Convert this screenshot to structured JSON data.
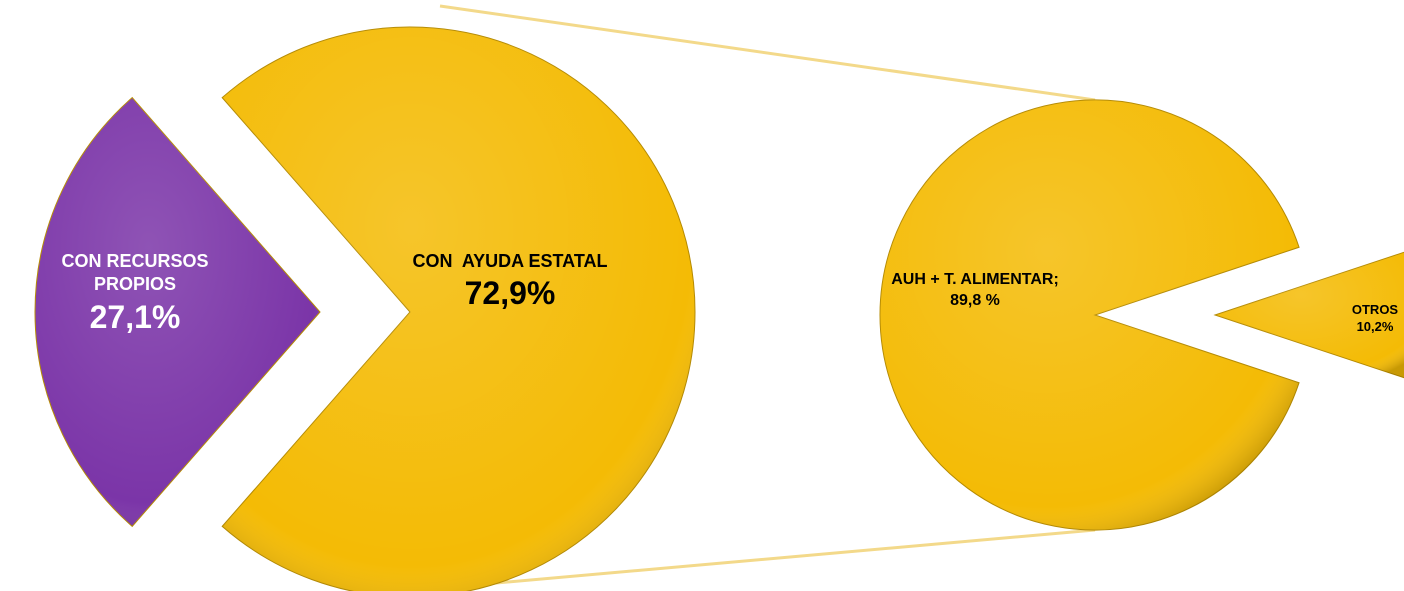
{
  "chart_data": [
    {
      "type": "pie",
      "categories": [
        "CON RECURSOS PROPIOS",
        "CON  AYUDA ESTATAL"
      ],
      "values": [
        27.1,
        72.9
      ],
      "value_labels": [
        "27,1%",
        "72,9%"
      ],
      "colors": [
        "#7b35a8",
        "#f4bb05"
      ]
    },
    {
      "type": "pie",
      "categories": [
        "AUH + T. ALIMENTAR;",
        "OTROS"
      ],
      "values": [
        89.8,
        10.2
      ],
      "value_labels": [
        "89,8 %",
        "10,2%"
      ],
      "colors": [
        "#f4bb05",
        "#f4bb05"
      ]
    }
  ]
}
